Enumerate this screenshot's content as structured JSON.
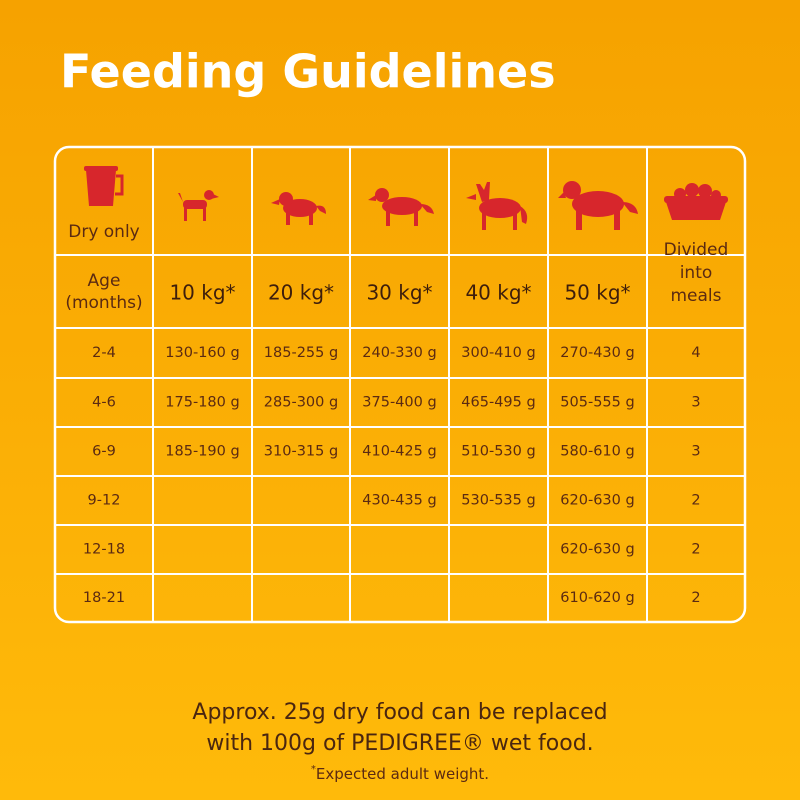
{
  "header": {
    "title": "Feeding Guidelines"
  },
  "table": {
    "dry_only": "Dry only",
    "age_header": [
      "Age",
      "(months)"
    ],
    "weights": [
      "10 kg*",
      "20 kg*",
      "30 kg*",
      "40 kg*",
      "50 kg*"
    ],
    "meals_header": [
      "Divided",
      "into",
      "meals"
    ],
    "rows": [
      [
        "2-4",
        "130-160 g",
        "185-255 g",
        "240-330 g",
        "300-410 g",
        "270-430 g",
        "4"
      ],
      [
        "4-6",
        "175-180 g",
        "285-300 g",
        "375-400 g",
        "465-495 g",
        "505-555 g",
        "3"
      ],
      [
        "6-9",
        "185-190 g",
        "310-315 g",
        "410-425 g",
        "510-530 g",
        "580-610 g",
        "3"
      ],
      [
        "9-12",
        null,
        null,
        "430-435 g",
        "530-535 g",
        "620-630 g",
        "2"
      ],
      [
        "12-18",
        null,
        null,
        null,
        null,
        "620-630 g",
        "2"
      ],
      [
        "18-21",
        null,
        null,
        null,
        null,
        "610-620 g",
        "2"
      ]
    ]
  },
  "footer": {
    "lines": [
      "Approx. 25g dry food can be replaced",
      "with 100g of PEDIGREE® wet food."
    ],
    "footnote": {
      "mark": "*",
      "text": "Expected adult weight."
    }
  }
}
